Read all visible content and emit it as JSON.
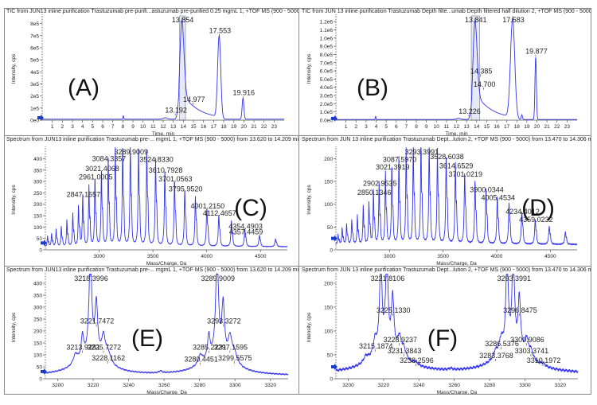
{
  "chart_data": [
    {
      "id": "A",
      "type": "line",
      "title": "TIC from JUN13 inline purification Trastuzumab pre-purifi...astuzumab pre-purified 0.25 mgmL 1, +TOF MS (900 - 5000)",
      "panel_label": "(A)",
      "xlabel": "Time, min",
      "ylabel": "Intensity, cps",
      "xlim": [
        0,
        24
      ],
      "ylim": [
        0,
        850000
      ],
      "xticks": [
        1,
        2,
        3,
        4,
        5,
        6,
        7,
        8,
        9,
        10,
        11,
        12,
        13,
        14,
        15,
        16,
        17,
        18,
        19,
        20,
        21,
        22,
        23
      ],
      "yticks": [
        0,
        100000,
        200000,
        300000,
        400000,
        500000,
        600000,
        700000,
        800000
      ],
      "ytick_labels": [
        "0e0",
        "1e5",
        "2e5",
        "3e5",
        "4e5",
        "5e5",
        "6e5",
        "7e5",
        "8e5"
      ],
      "selection_range": [
        13.62,
        14.209
      ],
      "peaks": [
        {
          "x": 8.05,
          "y": 30000,
          "w": 0.05
        },
        {
          "x": 12.2,
          "y": 12000,
          "w": 0.3
        },
        {
          "x": 13.854,
          "y": 820000,
          "w": 0.3,
          "tail": 0.9,
          "tailAmp": 220000
        },
        {
          "x": 17.553,
          "y": 690000,
          "w": 0.22
        },
        {
          "x": 19.916,
          "y": 175000,
          "w": 0.12
        }
      ],
      "baseline": 8000,
      "annotations": [
        {
          "label": "13.854",
          "x": 13.854,
          "y": 820000
        },
        {
          "label": "17.553",
          "x": 17.553,
          "y": 690000
        },
        {
          "label": "14.977",
          "x": 14.977,
          "y": 120000
        },
        {
          "label": "13.192",
          "x": 13.192,
          "y": 30000
        },
        {
          "label": "19.916",
          "x": 19.916,
          "y": 175000
        }
      ]
    },
    {
      "id": "B",
      "type": "line",
      "title": "TIC from JUN 13 inline purification Trastuzumab Depth filte...umab Depth filtered  half dilution 2, +TOF MS (900 - 5000)",
      "panel_label": "(B)",
      "xlabel": "Time, min",
      "ylabel": "Intensity, cps",
      "xlim": [
        0,
        24
      ],
      "ylim": [
        0,
        1250000
      ],
      "xticks": [
        1,
        2,
        3,
        4,
        5,
        6,
        7,
        8,
        9,
        10,
        11,
        12,
        13,
        14,
        15,
        16,
        17,
        18,
        19,
        20,
        21,
        22,
        23
      ],
      "yticks": [
        0,
        100000,
        200000,
        300000,
        400000,
        500000,
        600000,
        700000,
        800000,
        900000,
        1000000,
        1100000,
        1200000
      ],
      "ytick_labels": [
        "0.0e0",
        "1.0e5",
        "2.0e5",
        "3.0e5",
        "4.0e5",
        "5.0e5",
        "6.0e5",
        "7.0e5",
        "8.0e5",
        "9.0e5",
        "1.0e6",
        "1.1e6",
        "1.2e6"
      ],
      "selection_range": [
        13.47,
        14.306
      ],
      "peaks": [
        {
          "x": 3.95,
          "y": 40000,
          "w": 0.05
        },
        {
          "x": 12.2,
          "y": 15000,
          "w": 0.3
        },
        {
          "x": 13.841,
          "y": 1200000,
          "w": 0.3,
          "tail": 1.1,
          "tailAmp": 330000
        },
        {
          "x": 17.583,
          "y": 1230000,
          "w": 0.3
        },
        {
          "x": 18.5,
          "y": 60000,
          "w": 0.08
        },
        {
          "x": 19.877,
          "y": 760000,
          "w": 0.1
        }
      ],
      "baseline": 8000,
      "annotations": [
        {
          "label": "13.841",
          "x": 13.841,
          "y": 1200000
        },
        {
          "label": "17.583",
          "x": 17.583,
          "y": 1230000
        },
        {
          "label": "19.877",
          "x": 19.877,
          "y": 760000
        },
        {
          "label": "14.385",
          "x": 14.385,
          "y": 520000
        },
        {
          "label": "14.700",
          "x": 14.7,
          "y": 360000
        },
        {
          "label": "13.226",
          "x": 13.226,
          "y": 30000
        }
      ]
    },
    {
      "id": "C",
      "type": "line",
      "title": "Spectrum from JUN13 inline purification Trastuzumab pre-... mgmL 1, +TOF MS (900 - 5000) from 13.620 to 14.209 min",
      "panel_label": "(C)",
      "xlabel": "Mass/Charge, Da",
      "ylabel": "Intensity, cps",
      "xlim": [
        2500,
        4750
      ],
      "ylim": [
        0,
        440
      ],
      "xticks": [
        3000,
        3500,
        4000,
        4500
      ],
      "yticks": [
        0,
        50,
        100,
        150,
        200,
        250,
        300,
        350,
        400
      ],
      "baseline": 12,
      "peaks": [
        {
          "x": 2520,
          "y": 45
        },
        {
          "x": 2558,
          "y": 55
        },
        {
          "x": 2600,
          "y": 72
        },
        {
          "x": 2648,
          "y": 85
        },
        {
          "x": 2700,
          "y": 110
        },
        {
          "x": 2755,
          "y": 138
        },
        {
          "x": 2808,
          "y": 172
        },
        {
          "x": 2847.1557,
          "y": 215
        },
        {
          "x": 2905,
          "y": 255
        },
        {
          "x": 2961.0005,
          "y": 292
        },
        {
          "x": 3021.4068,
          "y": 328
        },
        {
          "x": 3084.3357,
          "y": 372
        },
        {
          "x": 3150,
          "y": 410
        },
        {
          "x": 3218.4,
          "y": 425
        },
        {
          "x": 3289.9009,
          "y": 432
        },
        {
          "x": 3366,
          "y": 425
        },
        {
          "x": 3443,
          "y": 410
        },
        {
          "x": 3524.833,
          "y": 368
        },
        {
          "x": 3610.7928,
          "y": 322
        },
        {
          "x": 3701.0563,
          "y": 282
        },
        {
          "x": 3795.952,
          "y": 240
        },
        {
          "x": 3895,
          "y": 208
        },
        {
          "x": 4001.215,
          "y": 165
        },
        {
          "x": 4112.4657,
          "y": 132
        },
        {
          "x": 4230,
          "y": 108
        },
        {
          "x": 4354.4903,
          "y": 75
        },
        {
          "x": 4490,
          "y": 48
        },
        {
          "x": 4640,
          "y": 32
        }
      ],
      "annotations": [
        {
          "label": "2847.1557",
          "x": 2847.1557,
          "y": 215
        },
        {
          "label": "2961.0005",
          "x": 2961.0005,
          "y": 292
        },
        {
          "label": "3021.4068",
          "x": 3021.4068,
          "y": 328
        },
        {
          "label": "3084.3357",
          "x": 3084.3357,
          "y": 372
        },
        {
          "label": "3289.9009",
          "x": 3289.9009,
          "y": 432
        },
        {
          "label": "3524.8330",
          "x": 3524.833,
          "y": 368
        },
        {
          "label": "3610.7928",
          "x": 3610.7928,
          "y": 322
        },
        {
          "label": "3701.0563",
          "x": 3701.0563,
          "y": 282
        },
        {
          "label": "3795.9520",
          "x": 3795.952,
          "y": 240
        },
        {
          "label": "4001.2150",
          "x": 4001.215,
          "y": 165
        },
        {
          "label": "4112.4657",
          "x": 4112.4657,
          "y": 132
        },
        {
          "label": "4354.4903",
          "x": 4354.4903,
          "y": 75
        },
        {
          "label": "4357.4459",
          "x": 4357.4459,
          "y": 50
        }
      ]
    },
    {
      "id": "D",
      "type": "line",
      "title": "Spectrum from JUN 13 inline purification Trastuzumab Dept...lution 2, +TOF MS (900 - 5000) from 13.470 to 14.306 min",
      "panel_label": "(D)",
      "xlabel": "Mass/Charge, Da",
      "ylabel": "Intensity, cps",
      "xlim": [
        2500,
        4750
      ],
      "ylim": [
        0,
        220
      ],
      "xticks": [
        3000,
        3500,
        4000,
        4500
      ],
      "yticks": [
        0,
        50,
        100,
        150,
        200
      ],
      "baseline": 10,
      "peaks": [
        {
          "x": 2520,
          "y": 22
        },
        {
          "x": 2558,
          "y": 35
        },
        {
          "x": 2600,
          "y": 42
        },
        {
          "x": 2648,
          "y": 52
        },
        {
          "x": 2700,
          "y": 60
        },
        {
          "x": 2755,
          "y": 80
        },
        {
          "x": 2808,
          "y": 90
        },
        {
          "x": 2850.1346,
          "y": 112
        },
        {
          "x": 2902.9535,
          "y": 132
        },
        {
          "x": 2962,
          "y": 152
        },
        {
          "x": 3021.3919,
          "y": 168
        },
        {
          "x": 3087.597,
          "y": 184
        },
        {
          "x": 3155,
          "y": 205
        },
        {
          "x": 3221.8,
          "y": 212
        },
        {
          "x": 3293.3991,
          "y": 218
        },
        {
          "x": 3370,
          "y": 212
        },
        {
          "x": 3447,
          "y": 200
        },
        {
          "x": 3528.6038,
          "y": 190
        },
        {
          "x": 3614.6529,
          "y": 170
        },
        {
          "x": 3701.0219,
          "y": 152
        },
        {
          "x": 3798,
          "y": 135
        },
        {
          "x": 3900.0344,
          "y": 118
        },
        {
          "x": 4005.4534,
          "y": 100
        },
        {
          "x": 4115,
          "y": 88
        },
        {
          "x": 4234.4012,
          "y": 70
        },
        {
          "x": 4359.0232,
          "y": 52
        },
        {
          "x": 4490,
          "y": 38
        },
        {
          "x": 4640,
          "y": 26
        }
      ],
      "annotations": [
        {
          "label": "2850.1346",
          "x": 2850.1346,
          "y": 112
        },
        {
          "label": "2902.9535",
          "x": 2902.9535,
          "y": 132
        },
        {
          "label": "3021.3919",
          "x": 3021.3919,
          "y": 168
        },
        {
          "label": "3087.5970",
          "x": 3087.597,
          "y": 184
        },
        {
          "label": "3293.3991",
          "x": 3293.3991,
          "y": 218
        },
        {
          "label": "3528.6038",
          "x": 3528.6038,
          "y": 190
        },
        {
          "label": "3614.6529",
          "x": 3614.6529,
          "y": 170
        },
        {
          "label": "3701.0219",
          "x": 3701.0219,
          "y": 152
        },
        {
          "label": "3900.0344",
          "x": 3900.0344,
          "y": 118
        },
        {
          "label": "4005.4534",
          "x": 4005.4534,
          "y": 100
        },
        {
          "label": "4234.4012",
          "x": 4234.4012,
          "y": 70
        },
        {
          "label": "4359.0232",
          "x": 4359.0232,
          "y": 52
        }
      ]
    },
    {
      "id": "E",
      "type": "line",
      "title": "Spectrum from JUN13 inline purification Trastuzumab pre-... mgmL 1, +TOF MS (900 - 5000) from 13.620 to 14.209 min",
      "panel_label": "(E)",
      "xlabel": "Mass/Charge, Da",
      "ylabel": "Intensity, cps",
      "xlim": [
        3193,
        3330
      ],
      "ylim": [
        0,
        430
      ],
      "xticks": [
        3200,
        3220,
        3240,
        3260,
        3280,
        3300,
        3320
      ],
      "yticks": [
        0,
        50,
        100,
        150,
        200,
        250,
        300,
        350,
        400
      ],
      "baseline": 12,
      "peaks": [
        {
          "x": 3210,
          "y": 40,
          "w": 1.5
        },
        {
          "x": 3213.9281,
          "y": 95,
          "w": 0.8
        },
        {
          "x": 3218.3996,
          "y": 420,
          "w": 0.9
        },
        {
          "x": 3221.7472,
          "y": 215,
          "w": 0.9
        },
        {
          "x": 3225.7272,
          "y": 90,
          "w": 1.2
        },
        {
          "x": 3228.1162,
          "y": 50,
          "w": 2
        },
        {
          "x": 3258,
          "y": 8,
          "w": 1
        },
        {
          "x": 3280.4451,
          "y": 40,
          "w": 1.5
        },
        {
          "x": 3285.2231,
          "y": 95,
          "w": 0.8
        },
        {
          "x": 3289.9009,
          "y": 425,
          "w": 0.9
        },
        {
          "x": 3293.3272,
          "y": 215,
          "w": 0.9
        },
        {
          "x": 3297.1595,
          "y": 90,
          "w": 1.2
        },
        {
          "x": 3299.5575,
          "y": 50,
          "w": 2
        }
      ],
      "broad": [
        {
          "x": 3219,
          "y": 80,
          "w": 10
        },
        {
          "x": 3290,
          "y": 80,
          "w": 10
        }
      ],
      "annotations": [
        {
          "label": "3218.3996",
          "x": 3218.3996,
          "y": 425
        },
        {
          "label": "3221.7472",
          "x": 3221.7472,
          "y": 215
        },
        {
          "label": "3213.9281",
          "x": 3213.9281,
          "y": 105
        },
        {
          "label": "3225.7272",
          "x": 3225.7272,
          "y": 105
        },
        {
          "label": "3228.1162",
          "x": 3228.1162,
          "y": 60
        },
        {
          "label": "3289.9009",
          "x": 3289.9009,
          "y": 430
        },
        {
          "label": "3293.3272",
          "x": 3293.3272,
          "y": 215
        },
        {
          "label": "3285.2231",
          "x": 3285.2231,
          "y": 105
        },
        {
          "label": "3280.4451",
          "x": 3280.4451,
          "y": 55
        },
        {
          "label": "3297.1595",
          "x": 3297.1595,
          "y": 105
        },
        {
          "label": "3299.5575",
          "x": 3299.5575,
          "y": 60
        }
      ]
    },
    {
      "id": "F",
      "type": "line",
      "title": "Spectrum from JUN 13 inline purification Trastuzumab Dept...lution 2, +TOF MS (900 - 5000) from 13.470 to 14.306 min",
      "panel_label": "(F)",
      "xlabel": "Mass/Charge, Da",
      "ylabel": "Intensity, cps",
      "xlim": [
        3193,
        3330
      ],
      "ylim": [
        0,
        215
      ],
      "xticks": [
        3200,
        3220,
        3240,
        3260,
        3280,
        3300,
        3320
      ],
      "yticks": [
        0,
        50,
        100,
        150,
        200
      ],
      "baseline": 10,
      "peaks": [
        {
          "x": 3210,
          "y": 12,
          "w": 1.5
        },
        {
          "x": 3215.1874,
          "y": 30,
          "w": 1.2
        },
        {
          "x": 3218.4,
          "y": 190,
          "w": 0.8
        },
        {
          "x": 3221.8106,
          "y": 195,
          "w": 0.8
        },
        {
          "x": 3225.133,
          "y": 110,
          "w": 0.8
        },
        {
          "x": 3228.9237,
          "y": 35,
          "w": 1.2
        },
        {
          "x": 3231.3843,
          "y": 20,
          "w": 1.5
        },
        {
          "x": 3238.2596,
          "y": 6,
          "w": 1.5
        },
        {
          "x": 3258,
          "y": 3,
          "w": 1
        },
        {
          "x": 3283.3768,
          "y": 15,
          "w": 1.5
        },
        {
          "x": 3286.5376,
          "y": 30,
          "w": 1.2
        },
        {
          "x": 3289.9,
          "y": 190,
          "w": 0.8
        },
        {
          "x": 3293.3991,
          "y": 195,
          "w": 0.8
        },
        {
          "x": 3296.8475,
          "y": 110,
          "w": 0.8
        },
        {
          "x": 3300.9086,
          "y": 35,
          "w": 1.2
        },
        {
          "x": 3303.3741,
          "y": 18,
          "w": 1.5
        },
        {
          "x": 3310.1972,
          "y": 6,
          "w": 1.5
        }
      ],
      "broad": [
        {
          "x": 3222,
          "y": 50,
          "w": 11
        },
        {
          "x": 3293,
          "y": 50,
          "w": 11
        }
      ],
      "annotations": [
        {
          "label": "3221.8106",
          "x": 3221.8106,
          "y": 210
        },
        {
          "label": "3225.1330",
          "x": 3225.133,
          "y": 130
        },
        {
          "label": "3215.1874",
          "x": 3215.1874,
          "y": 55
        },
        {
          "label": "3228.9237",
          "x": 3228.9237,
          "y": 68
        },
        {
          "label": "3231.3843",
          "x": 3231.3843,
          "y": 45
        },
        {
          "label": "3238.2596",
          "x": 3238.2596,
          "y": 25
        },
        {
          "label": "3293.3991",
          "x": 3293.3991,
          "y": 210
        },
        {
          "label": "3296.8475",
          "x": 3296.8475,
          "y": 130
        },
        {
          "label": "3286.5376",
          "x": 3286.5376,
          "y": 60
        },
        {
          "label": "3283.3768",
          "x": 3283.3768,
          "y": 35
        },
        {
          "label": "3300.9086",
          "x": 3300.9086,
          "y": 68
        },
        {
          "label": "3303.3741",
          "x": 3303.3741,
          "y": 45
        },
        {
          "label": "3310.1972",
          "x": 3310.1972,
          "y": 25
        }
      ]
    }
  ],
  "colors": {
    "trace": "#3333ee",
    "trace_light": "#7f7ff5",
    "axis": "#555555",
    "text": "#222222",
    "selection": "#e6e9f7",
    "marker": "#1a3cc8"
  }
}
